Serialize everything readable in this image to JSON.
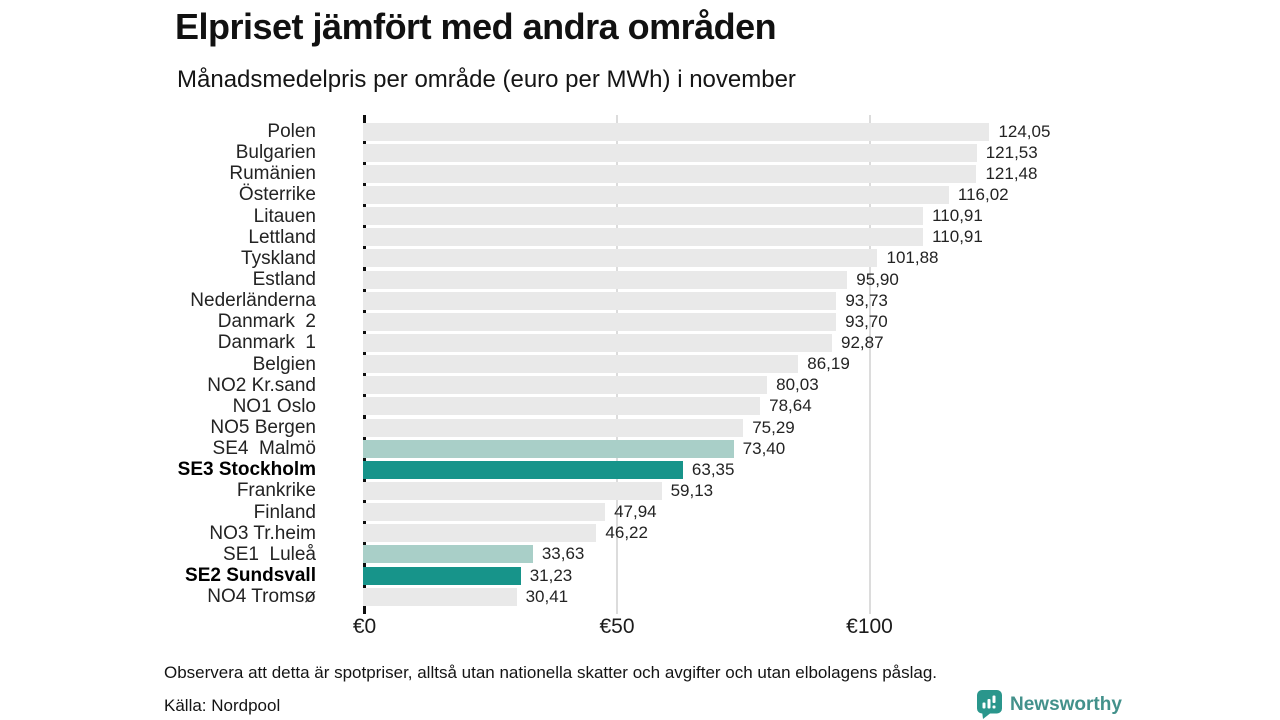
{
  "header": {
    "title": "Elpriset jämfört med andra områden",
    "subtitle": "Månadsmedelpris per område (euro per MWh) i november"
  },
  "chart_data": {
    "type": "bar",
    "orientation": "horizontal",
    "title": "Elpriset jämfört med andra områden",
    "subtitle": "Månadsmedelpris per område (euro per MWh) i november",
    "unit": "euro per MWh",
    "xlim": [
      0,
      130
    ],
    "x_ticks": [
      {
        "label": "€0",
        "value": 0
      },
      {
        "label": "€50",
        "value": 50
      },
      {
        "label": "€100",
        "value": 100
      }
    ],
    "gridlines": [
      50,
      100
    ],
    "categories": [
      "Polen",
      "Bulgarien",
      "Rumänien",
      "Österrike",
      "Litauen",
      "Lettland",
      "Tyskland",
      "Estland",
      "Nederländerna",
      "Danmark  2",
      "Danmark  1",
      "Belgien",
      "NO2 Kr.sand",
      "NO1 Oslo",
      "NO5 Bergen",
      "SE4  Malmö",
      "SE3 Stockholm",
      "Frankrike",
      "Finland",
      "NO3 Tr.heim",
      "SE1  Luleå",
      "SE2 Sundsvall",
      "NO4 Tromsø"
    ],
    "values": [
      124.05,
      121.53,
      121.48,
      116.02,
      110.91,
      110.91,
      101.88,
      95.9,
      93.73,
      93.7,
      92.87,
      86.19,
      80.03,
      78.64,
      75.29,
      73.4,
      63.35,
      59.13,
      47.94,
      46.22,
      33.63,
      31.23,
      30.41
    ],
    "value_labels": [
      "124,05",
      "121,53",
      "121,48",
      "116,02",
      "110,91",
      "110,91",
      "101,88",
      "95,90",
      "93,73",
      "93,70",
      "92,87",
      "86,19",
      "80,03",
      "78,64",
      "75,29",
      "73,40",
      "63,35",
      "59,13",
      "47,94",
      "46,22",
      "33,63",
      "31,23",
      "30,41"
    ],
    "styles": [
      "default",
      "default",
      "default",
      "default",
      "default",
      "default",
      "default",
      "default",
      "default",
      "default",
      "default",
      "default",
      "default",
      "default",
      "default",
      "sweden_light",
      "sweden_dark",
      "default",
      "default",
      "default",
      "sweden_light",
      "sweden_dark",
      "default"
    ],
    "colors": {
      "default": "#e9e9e9",
      "sweden_light": "#a9cfc8",
      "sweden_dark": "#17948a",
      "axis": "#0e0e0e",
      "gridline": "#dcdcdc"
    },
    "legend": false
  },
  "footer": {
    "note": "Observera att detta är spotpriser, alltså utan nationella skatter och avgifter och utan elbolagens påslag.",
    "source": "Källa: Nordpool",
    "brand": "Newsworthy",
    "brand_color": "#2a968c"
  }
}
